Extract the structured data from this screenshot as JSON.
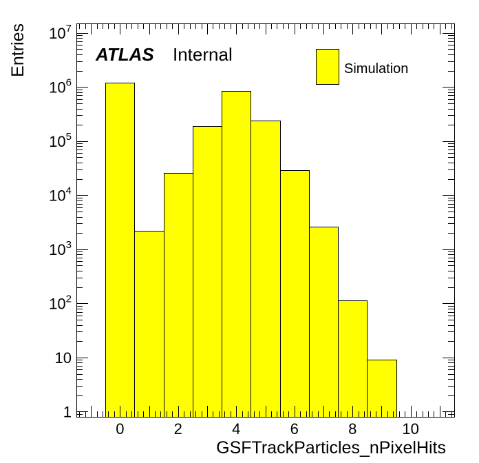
{
  "chart_data": {
    "type": "bar",
    "xlabel": "GSFTrackParticles_nPixelHits",
    "ylabel": "Entries",
    "xlim": [
      -1.5,
      11.5
    ],
    "ylim": [
      0.8,
      15000000
    ],
    "yscale": "log",
    "bin_width": 1,
    "bin_centers": [
      0,
      1,
      2,
      3,
      4,
      5,
      6,
      7,
      8,
      9
    ],
    "values": [
      1200000,
      2200,
      26000,
      190000,
      850000,
      240000,
      29000,
      2600,
      115,
      9
    ],
    "series": [
      {
        "name": "Simulation",
        "color": "#ffff00",
        "values": [
          1200000,
          2200,
          26000,
          190000,
          850000,
          240000,
          29000,
          2600,
          115,
          9
        ]
      }
    ],
    "x_ticks": [
      "0",
      "2",
      "4",
      "6",
      "8",
      "10"
    ],
    "y_ticks": [
      {
        "value": 1,
        "mant": "1",
        "exp": ""
      },
      {
        "value": 10,
        "mant": "10",
        "exp": ""
      },
      {
        "value": 100,
        "mant": "10",
        "exp": "2"
      },
      {
        "value": 1000,
        "mant": "10",
        "exp": "3"
      },
      {
        "value": 10000,
        "mant": "10",
        "exp": "4"
      },
      {
        "value": 100000,
        "mant": "10",
        "exp": "5"
      },
      {
        "value": 1000000,
        "mant": "10",
        "exp": "6"
      },
      {
        "value": 10000000,
        "mant": "10",
        "exp": "7"
      }
    ],
    "legend_position": "top-right",
    "grid": false,
    "annotation": {
      "experiment": "ATLAS",
      "status": "Internal"
    }
  }
}
